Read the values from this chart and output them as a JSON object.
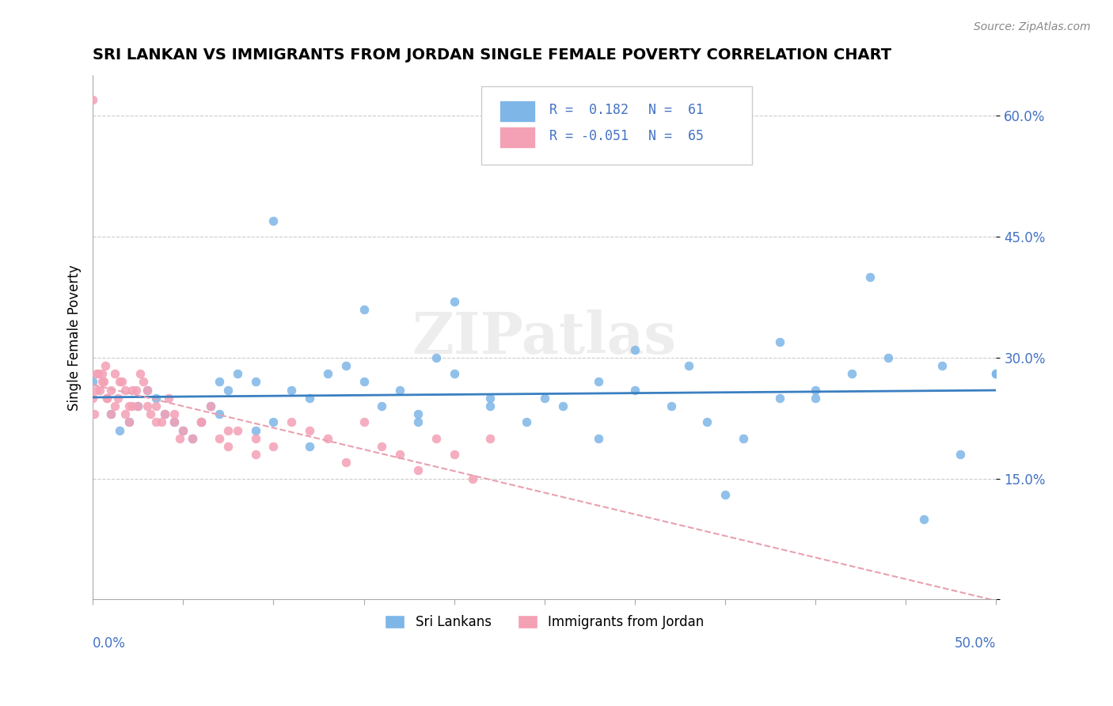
{
  "title": "SRI LANKAN VS IMMIGRANTS FROM JORDAN SINGLE FEMALE POVERTY CORRELATION CHART",
  "source": "Source: ZipAtlas.com",
  "ylabel": "Single Female Poverty",
  "yticks": [
    0.0,
    0.15,
    0.3,
    0.45,
    0.6
  ],
  "ytick_labels": [
    "",
    "15.0%",
    "30.0%",
    "45.0%",
    "60.0%"
  ],
  "xlim": [
    0.0,
    0.5
  ],
  "ylim": [
    0.0,
    0.65
  ],
  "legend_r1": "R =  0.182",
  "legend_n1": "N =  61",
  "legend_r2": "R = -0.051",
  "legend_n2": "N =  65",
  "watermark": "ZIPatlas",
  "blue_color": "#7EB6E8",
  "pink_color": "#F4A0B5",
  "blue_line_color": "#3A7FC1",
  "pink_line_color": "#E8A0B0",
  "sri_lanka_x": [
    0.0,
    0.01,
    0.015,
    0.02,
    0.025,
    0.03,
    0.035,
    0.04,
    0.045,
    0.05,
    0.055,
    0.06,
    0.065,
    0.07,
    0.075,
    0.08,
    0.09,
    0.1,
    0.11,
    0.12,
    0.13,
    0.14,
    0.15,
    0.16,
    0.17,
    0.18,
    0.19,
    0.2,
    0.22,
    0.24,
    0.26,
    0.28,
    0.3,
    0.32,
    0.34,
    0.36,
    0.38,
    0.4,
    0.42,
    0.44,
    0.46,
    0.48,
    0.5,
    0.1,
    0.15,
    0.2,
    0.25,
    0.3,
    0.35,
    0.4,
    0.07,
    0.09,
    0.12,
    0.18,
    0.22,
    0.28,
    0.33,
    0.38,
    0.43,
    0.47,
    0.5
  ],
  "sri_lanka_y": [
    0.27,
    0.23,
    0.21,
    0.22,
    0.24,
    0.26,
    0.25,
    0.23,
    0.22,
    0.21,
    0.2,
    0.22,
    0.24,
    0.23,
    0.26,
    0.28,
    0.27,
    0.22,
    0.26,
    0.25,
    0.28,
    0.29,
    0.27,
    0.24,
    0.26,
    0.23,
    0.3,
    0.28,
    0.25,
    0.22,
    0.24,
    0.2,
    0.26,
    0.24,
    0.22,
    0.2,
    0.25,
    0.26,
    0.28,
    0.3,
    0.1,
    0.18,
    0.28,
    0.47,
    0.36,
    0.37,
    0.25,
    0.31,
    0.13,
    0.25,
    0.27,
    0.21,
    0.19,
    0.22,
    0.24,
    0.27,
    0.29,
    0.32,
    0.4,
    0.29,
    0.28
  ],
  "jordan_x": [
    0.0,
    0.002,
    0.004,
    0.006,
    0.008,
    0.01,
    0.012,
    0.014,
    0.016,
    0.018,
    0.02,
    0.022,
    0.024,
    0.026,
    0.028,
    0.03,
    0.035,
    0.04,
    0.045,
    0.05,
    0.055,
    0.06,
    0.065,
    0.07,
    0.075,
    0.08,
    0.09,
    0.1,
    0.11,
    0.12,
    0.13,
    0.14,
    0.15,
    0.16,
    0.17,
    0.18,
    0.19,
    0.2,
    0.21,
    0.22,
    0.005,
    0.008,
    0.012,
    0.018,
    0.025,
    0.032,
    0.038,
    0.042,
    0.048,
    0.001,
    0.003,
    0.007,
    0.015,
    0.022,
    0.03,
    0.045,
    0.06,
    0.075,
    0.09,
    0.0,
    0.002,
    0.005,
    0.01,
    0.02,
    0.035
  ],
  "jordan_y": [
    0.62,
    0.28,
    0.26,
    0.27,
    0.25,
    0.26,
    0.24,
    0.25,
    0.27,
    0.23,
    0.22,
    0.24,
    0.26,
    0.28,
    0.27,
    0.26,
    0.24,
    0.23,
    0.22,
    0.21,
    0.2,
    0.22,
    0.24,
    0.2,
    0.19,
    0.21,
    0.18,
    0.19,
    0.22,
    0.21,
    0.2,
    0.17,
    0.22,
    0.19,
    0.18,
    0.16,
    0.2,
    0.18,
    0.15,
    0.2,
    0.27,
    0.25,
    0.28,
    0.26,
    0.24,
    0.23,
    0.22,
    0.25,
    0.2,
    0.23,
    0.28,
    0.29,
    0.27,
    0.26,
    0.24,
    0.23,
    0.22,
    0.21,
    0.2,
    0.25,
    0.26,
    0.28,
    0.23,
    0.24,
    0.22
  ]
}
